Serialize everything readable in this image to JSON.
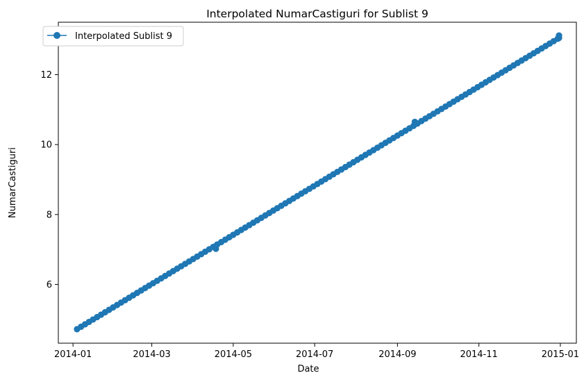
{
  "chart_data": {
    "type": "line",
    "title": "Interpolated NumarCastiguri for Sublist 9",
    "xlabel": "Date",
    "ylabel": "NumarCastiguri",
    "x_axis_type": "date",
    "xlim": [
      "2013-12-21",
      "2015-01-13"
    ],
    "ylim": [
      4.32,
      13.5
    ],
    "x_ticks": [
      "2014-01",
      "2014-03",
      "2014-05",
      "2014-07",
      "2014-09",
      "2014-11",
      "2015-01"
    ],
    "y_ticks": [
      6,
      8,
      10,
      12
    ],
    "grid": false,
    "legend": {
      "position": "top-left",
      "entries": [
        "Interpolated Sublist 9"
      ]
    },
    "marker": "circle",
    "series": [
      {
        "name": "Interpolated Sublist 9",
        "color": "#1f77b4",
        "start": {
          "x": "2014-01-04",
          "y": 4.72
        },
        "end": {
          "x": "2014-12-31",
          "y": 13.05
        },
        "step_days": 3,
        "breaks": [
          {
            "x": "2014-04-18",
            "y_before": 7.02,
            "y_after": 7.1
          },
          {
            "x": "2014-09-14",
            "y_before": 10.58,
            "y_after": 10.65
          },
          {
            "x": "2014-12-31",
            "y_before": 13.05,
            "y_after": 13.12
          }
        ]
      }
    ]
  }
}
